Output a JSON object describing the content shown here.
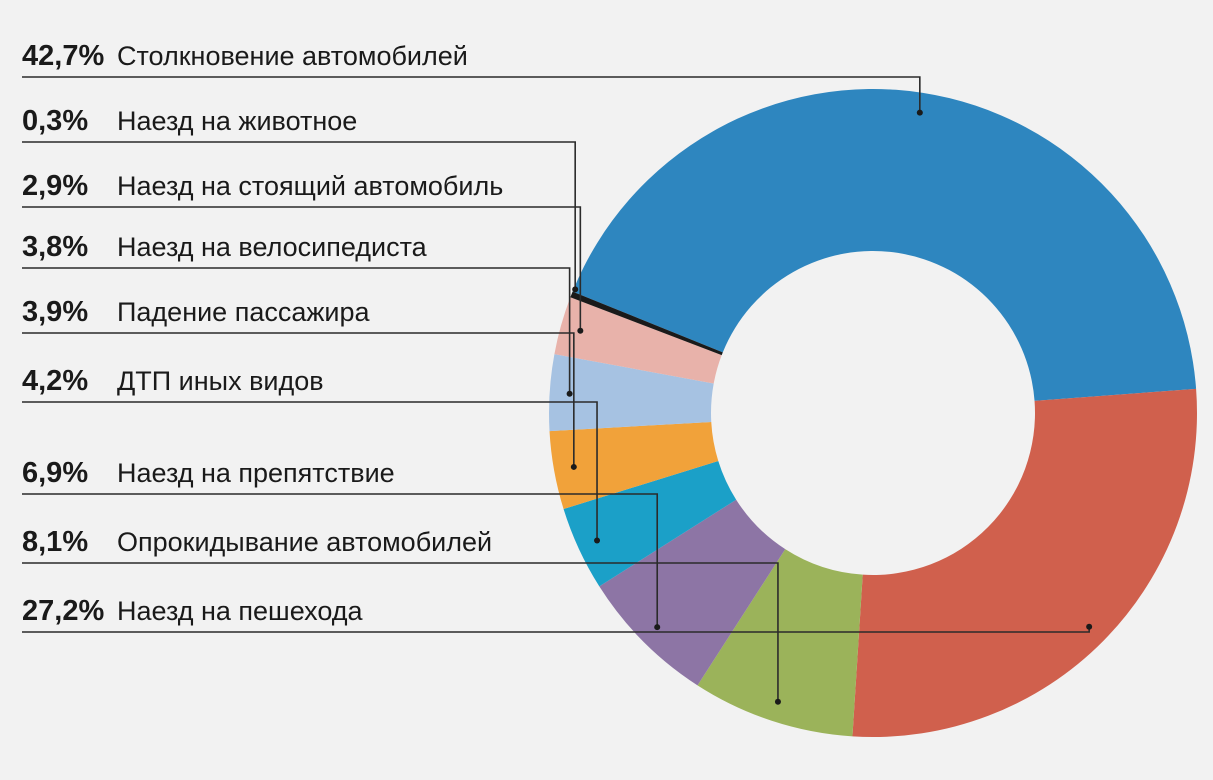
{
  "chart_data": {
    "type": "pie",
    "donut": true,
    "title": "",
    "unit": "%",
    "slices": [
      {
        "label": "Столкновение автомобилей",
        "value": 42.7,
        "value_text": "42,7%",
        "color": "#2e86bf"
      },
      {
        "label": "Наезд на пешехода",
        "value": 27.2,
        "value_text": "27,2%",
        "color": "#d0604d"
      },
      {
        "label": "Опрокидывание автомобилей",
        "value": 8.1,
        "value_text": "8,1%",
        "color": "#9bb35a"
      },
      {
        "label": "Наезд на препятствие",
        "value": 6.9,
        "value_text": "6,9%",
        "color": "#8d75a5"
      },
      {
        "label": "ДТП иных видов",
        "value": 4.2,
        "value_text": "4,2%",
        "color": "#1ba0c8"
      },
      {
        "label": "Падение пассажира",
        "value": 3.9,
        "value_text": "3,9%",
        "color": "#f1a23a"
      },
      {
        "label": "Наезд на велосипедиста",
        "value": 3.8,
        "value_text": "3,8%",
        "color": "#a6c2e2"
      },
      {
        "label": "Наезд на стоящий автомобиль",
        "value": 2.9,
        "value_text": "2,9%",
        "color": "#e8b2aa"
      },
      {
        "label": "Наезд на животное",
        "value": 0.3,
        "value_text": "0,3%",
        "color": "#1a1a1a"
      }
    ],
    "legend_order": [
      "Столкновение автомобилей",
      "Наезд на животное",
      "Наезд на стоящий автомобиль",
      "Наезд на велосипедиста",
      "Падение пассажира",
      "ДТП иных видов",
      "Наезд на препятствие",
      "Опрокидывание автомобилей",
      "Наезд на пешехода"
    ],
    "legend_placement": "left"
  }
}
